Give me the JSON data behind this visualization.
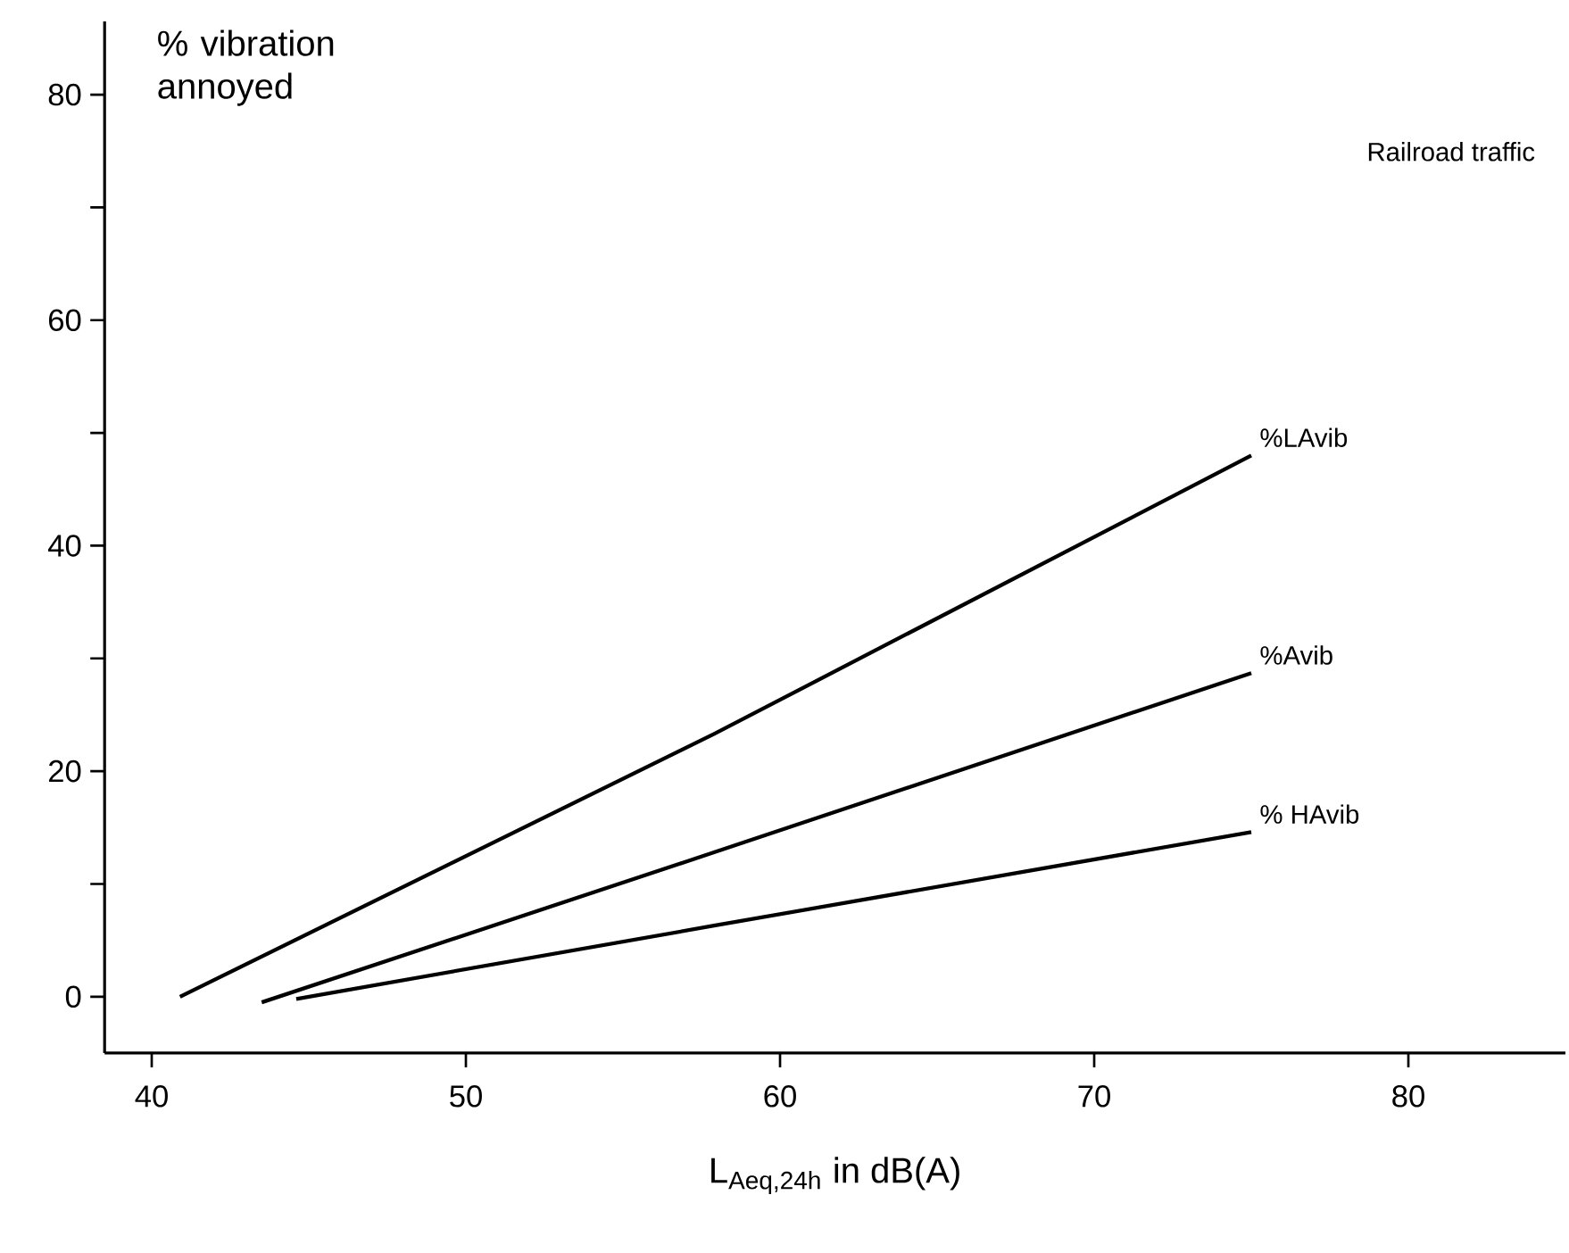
{
  "chart_data": {
    "type": "line",
    "title": "Railroad traffic",
    "xlabel": "L$_{Aeq,24h}$ in dB(A)",
    "ylabel": "% vibration annoyed",
    "xlim": [
      38.5,
      85
    ],
    "ylim": [
      -5,
      86.5
    ],
    "xticks": [
      40,
      50,
      60,
      70,
      80
    ],
    "yticks": [
      0,
      {
        "value": 10,
        "label": null
      },
      20,
      {
        "value": 30,
        "label": null
      },
      40,
      {
        "value": 50,
        "label": null
      },
      60,
      {
        "value": 70,
        "label": null
      },
      80
    ],
    "grid": false,
    "series": [
      {
        "name": "%LAvib",
        "color": "#000000",
        "x": [
          40.9,
          57.9,
          75
        ],
        "values": [
          0,
          23.3,
          48
        ]
      },
      {
        "name": "%Avib",
        "color": "#000000",
        "x": [
          43.5,
          57.9,
          75
        ],
        "values": [
          -0.5,
          12.8,
          28.7
        ]
      },
      {
        "name": "% HAvib",
        "color": "#000000",
        "x": [
          44.6,
          57.9,
          75
        ],
        "values": [
          -0.2,
          6.3,
          14.6
        ]
      }
    ]
  }
}
